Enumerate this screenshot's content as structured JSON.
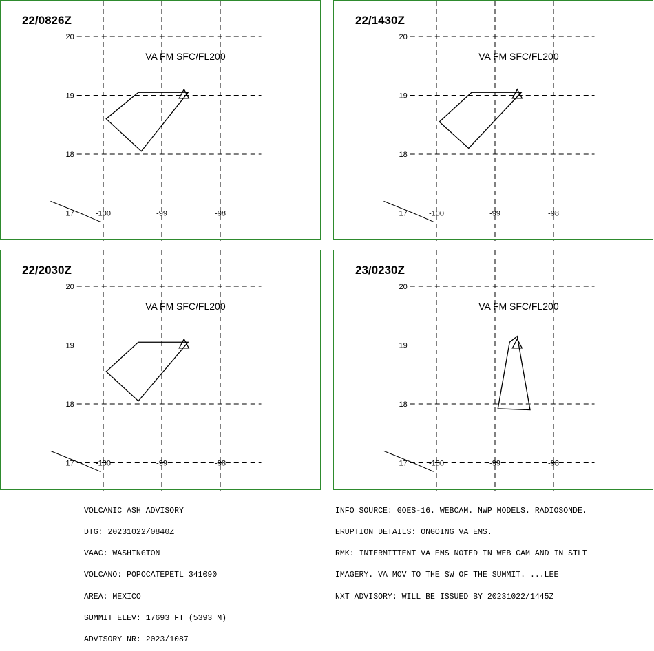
{
  "panels": [
    {
      "title": "22/0826Z",
      "va_label": "VA FM SFC/FL200",
      "lat_ticks": [
        "20",
        "19",
        "18",
        "17"
      ],
      "lon_ticks": [
        "-100",
        "-99",
        "-98"
      ],
      "ash_polygon": [
        [
          -99.4,
          19.05
        ],
        [
          -99.95,
          18.6
        ],
        [
          -99.35,
          18.05
        ],
        [
          -98.55,
          19.05
        ]
      ],
      "volcano": [
        -98.62,
        19.02
      ]
    },
    {
      "title": "22/1430Z",
      "va_label": "VA FM SFC/FL200",
      "lat_ticks": [
        "20",
        "19",
        "18",
        "17"
      ],
      "lon_ticks": [
        "-100",
        "-99",
        "-98"
      ],
      "ash_polygon": [
        [
          -99.4,
          19.05
        ],
        [
          -99.95,
          18.55
        ],
        [
          -99.45,
          18.1
        ],
        [
          -98.55,
          19.05
        ]
      ],
      "volcano": [
        -98.62,
        19.02
      ]
    },
    {
      "title": "22/2030Z",
      "va_label": "VA FM SFC/FL200",
      "lat_ticks": [
        "20",
        "19",
        "18",
        "17"
      ],
      "lon_ticks": [
        "-100",
        "-99",
        "-98"
      ],
      "ash_polygon": [
        [
          -99.4,
          19.05
        ],
        [
          -99.95,
          18.55
        ],
        [
          -99.4,
          18.05
        ],
        [
          -98.55,
          19.05
        ]
      ],
      "volcano": [
        -98.62,
        19.02
      ]
    },
    {
      "title": "23/0230Z",
      "va_label": "VA FM SFC/FL200",
      "lat_ticks": [
        "20",
        "19",
        "18",
        "17"
      ],
      "lon_ticks": [
        "-100",
        "-99",
        "-98"
      ],
      "ash_polygon": [
        [
          -98.62,
          19.15
        ],
        [
          -98.4,
          17.9
        ],
        [
          -98.95,
          17.92
        ],
        [
          -98.75,
          19.05
        ]
      ],
      "volcano": [
        -98.62,
        19.02
      ]
    }
  ],
  "advisory_left": [
    "VOLCANIC ASH ADVISORY",
    "DTG: 20231022/0840Z",
    "VAAC: WASHINGTON",
    "VOLCANO: POPOCATEPETL 341090",
    "AREA: MEXICO",
    "SUMMIT ELEV: 17693 FT (5393 M)",
    "ADVISORY NR: 2023/1087"
  ],
  "advisory_right": [
    "INFO SOURCE: GOES-16. WEBCAM. NWP MODELS. RADIOSONDE.",
    "ERUPTION DETAILS: ONGOING VA EMS.",
    "RMK: INTERMITTENT VA EMS NOTED IN WEB CAM AND IN STLT",
    "IMAGERY. VA MOV TO THE SW OF THE SUMMIT. ...LEE",
    "NXT ADVISORY: WILL BE ISSUED BY 20231022/1445Z"
  ],
  "colors": {
    "panel_border": "#2e8b2e",
    "ink": "#000000"
  }
}
